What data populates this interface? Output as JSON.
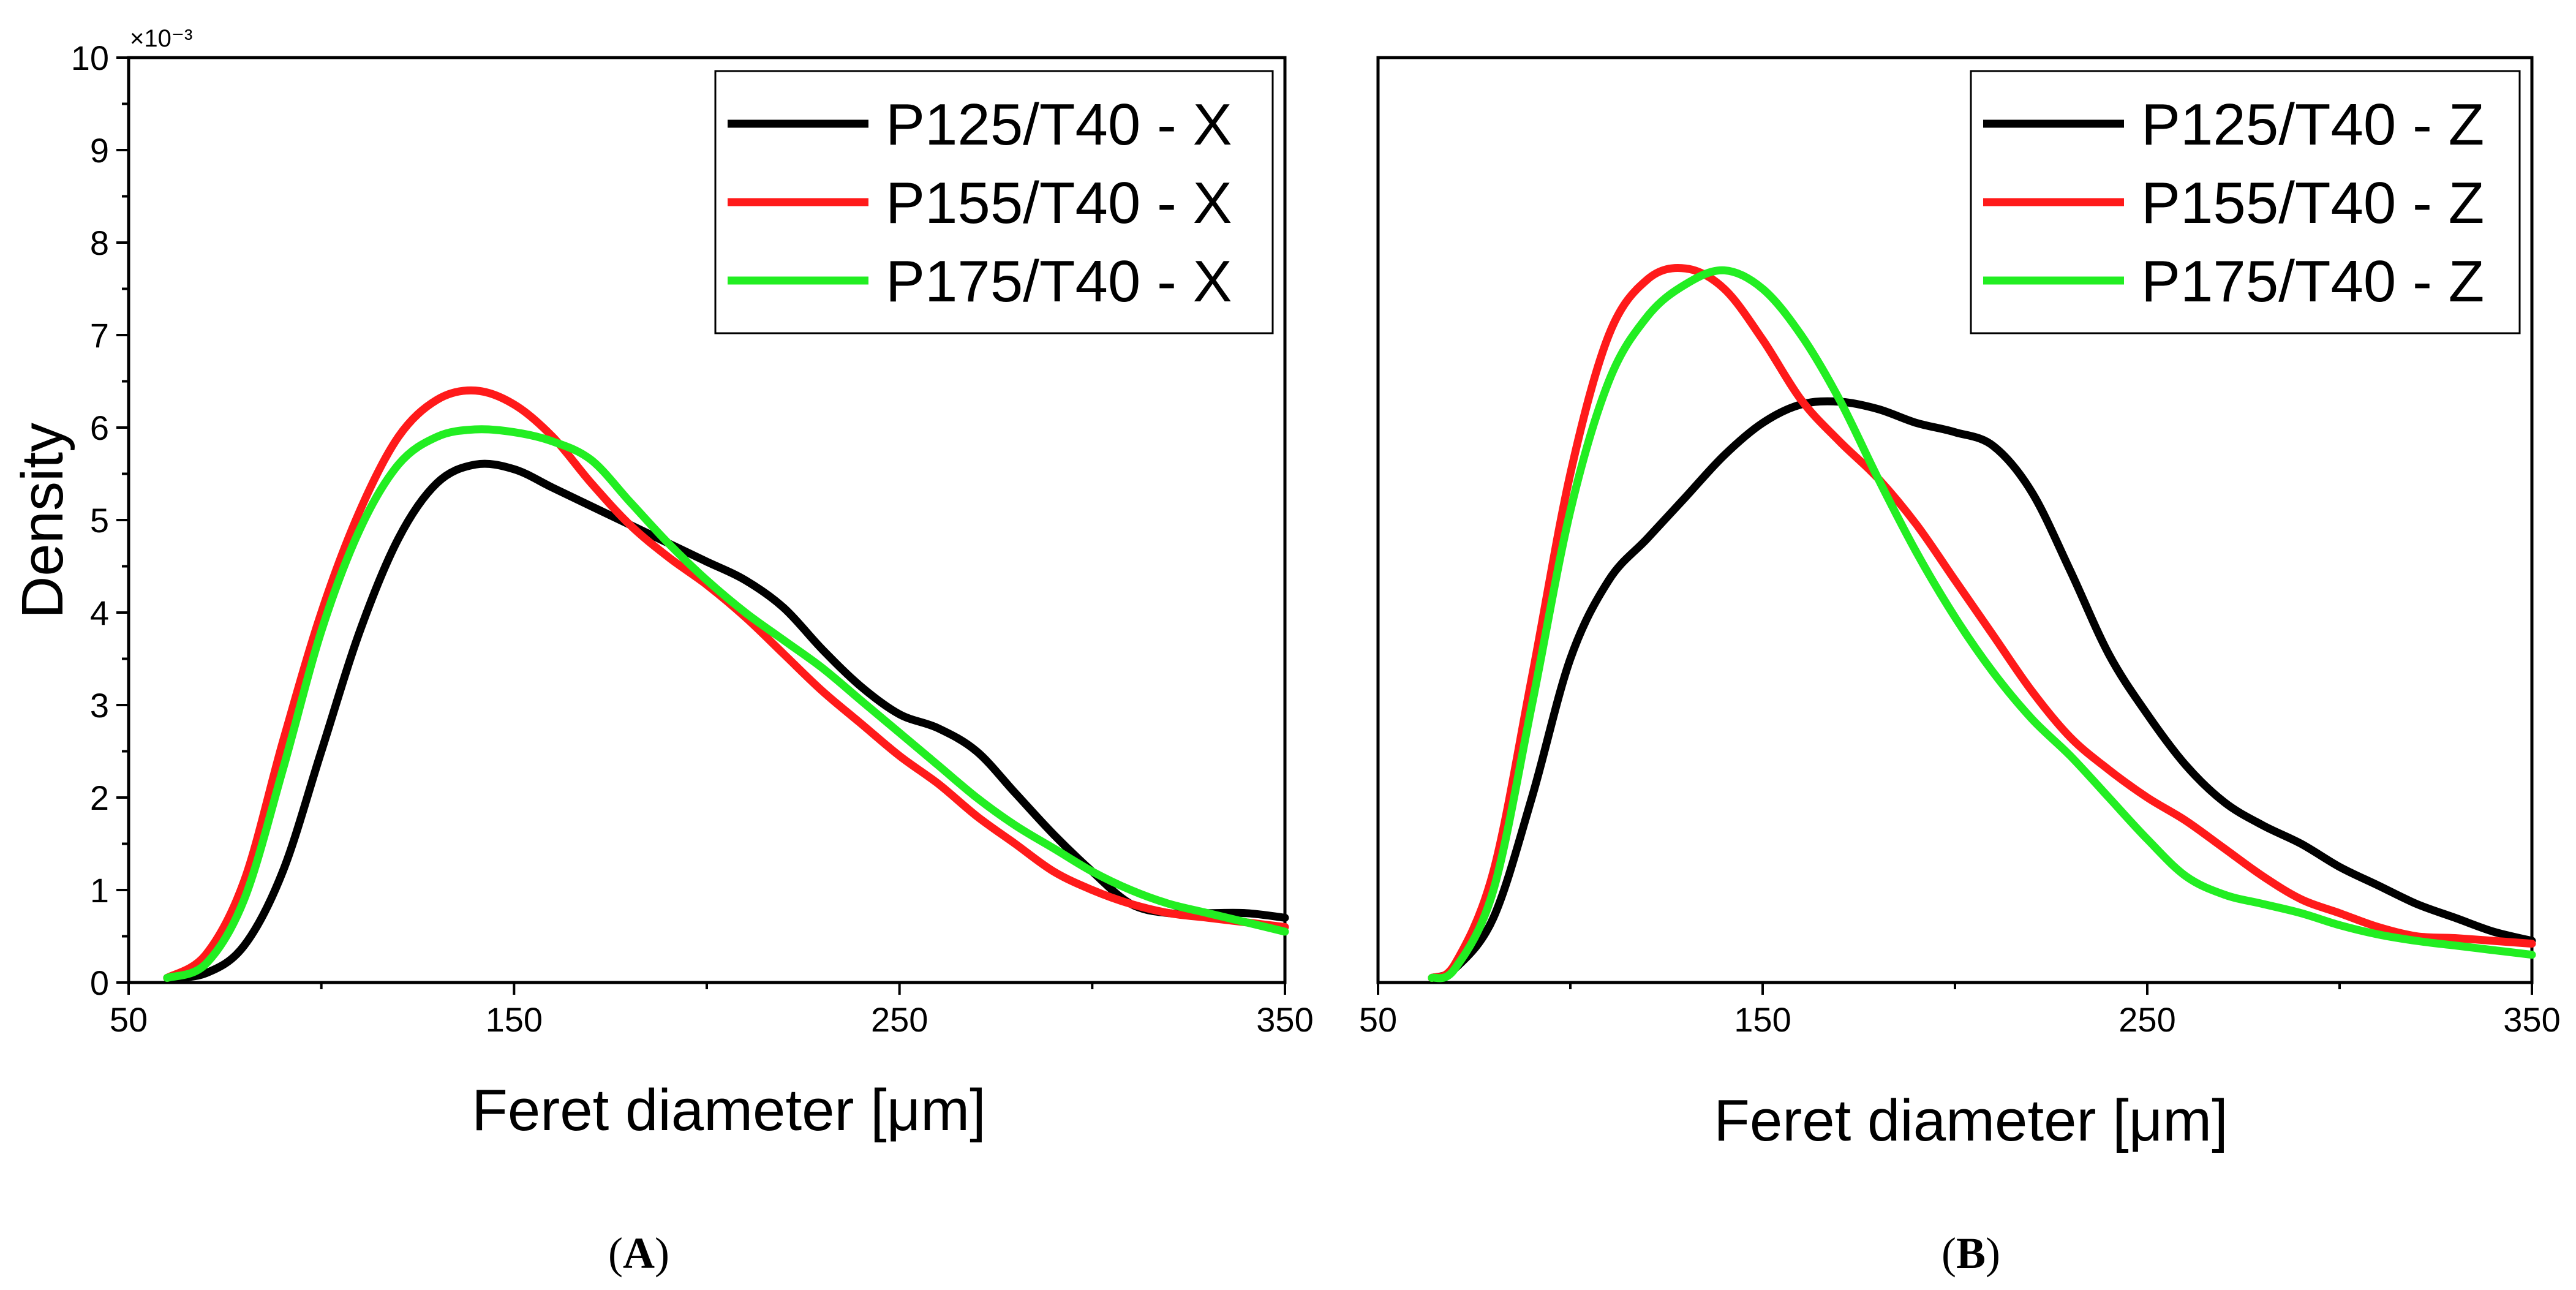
{
  "chart_data": [
    {
      "type": "line",
      "panel_label": "A",
      "xlabel": "Feret diameter [μm]",
      "ylabel": "Density",
      "y_scale_label": "×10⁻³",
      "xlim": [
        50,
        350
      ],
      "ylim": [
        0,
        10
      ],
      "xticks": [
        50,
        150,
        250,
        350
      ],
      "yticks": [
        0,
        1,
        2,
        3,
        4,
        5,
        6,
        7,
        8,
        9,
        10
      ],
      "legend_position": "top-right",
      "series": [
        {
          "name": "P125/T40 - X",
          "color": "#000000",
          "x": [
            60,
            70,
            80,
            90,
            100,
            110,
            120,
            130,
            140,
            150,
            160,
            170,
            180,
            190,
            200,
            210,
            220,
            230,
            240,
            250,
            260,
            270,
            280,
            290,
            300,
            310,
            320,
            330,
            340,
            350
          ],
          "y": [
            0.05,
            0.1,
            0.4,
            1.2,
            2.5,
            3.8,
            4.8,
            5.4,
            5.6,
            5.55,
            5.35,
            5.15,
            4.95,
            4.75,
            4.55,
            4.35,
            4.05,
            3.6,
            3.2,
            2.9,
            2.75,
            2.5,
            2.05,
            1.6,
            1.2,
            0.85,
            0.75,
            0.75,
            0.75,
            0.7
          ]
        },
        {
          "name": "P155/T40 - X",
          "color": "#ff1a1a",
          "x": [
            60,
            70,
            80,
            90,
            100,
            110,
            120,
            130,
            140,
            150,
            160,
            170,
            180,
            190,
            200,
            210,
            220,
            230,
            240,
            250,
            260,
            270,
            280,
            290,
            300,
            310,
            320,
            330,
            340,
            350
          ],
          "y": [
            0.05,
            0.3,
            1.1,
            2.6,
            4.0,
            5.1,
            5.9,
            6.3,
            6.4,
            6.25,
            5.9,
            5.4,
            4.95,
            4.6,
            4.3,
            3.95,
            3.55,
            3.15,
            2.8,
            2.45,
            2.15,
            1.8,
            1.5,
            1.2,
            1.0,
            0.85,
            0.75,
            0.7,
            0.65,
            0.6
          ]
        },
        {
          "name": "P175/T40 - X",
          "color": "#22ee22",
          "x": [
            60,
            70,
            80,
            90,
            100,
            110,
            120,
            130,
            140,
            150,
            160,
            170,
            180,
            190,
            200,
            210,
            220,
            230,
            240,
            250,
            260,
            270,
            280,
            290,
            300,
            310,
            320,
            330,
            340,
            350
          ],
          "y": [
            0.05,
            0.2,
            0.9,
            2.3,
            3.8,
            4.9,
            5.6,
            5.9,
            5.98,
            5.95,
            5.85,
            5.65,
            5.2,
            4.75,
            4.35,
            4.0,
            3.7,
            3.4,
            3.05,
            2.7,
            2.35,
            2.0,
            1.7,
            1.45,
            1.2,
            1.0,
            0.85,
            0.75,
            0.65,
            0.55
          ]
        }
      ]
    },
    {
      "type": "line",
      "panel_label": "B",
      "xlabel": "Feret diameter [μm]",
      "ylabel": "",
      "xlim": [
        50,
        350
      ],
      "ylim": [
        0,
        10
      ],
      "xticks": [
        50,
        150,
        250,
        350
      ],
      "legend_position": "top-right",
      "series": [
        {
          "name": "P125/T40 - Z",
          "color": "#000000",
          "x": [
            64,
            70,
            80,
            90,
            100,
            110,
            120,
            130,
            140,
            150,
            160,
            170,
            180,
            190,
            200,
            210,
            220,
            230,
            240,
            250,
            260,
            270,
            280,
            290,
            300,
            310,
            320,
            330,
            340,
            350
          ],
          "y": [
            0.05,
            0.15,
            0.7,
            2.0,
            3.5,
            4.35,
            4.8,
            5.25,
            5.7,
            6.05,
            6.25,
            6.28,
            6.2,
            6.05,
            5.95,
            5.8,
            5.3,
            4.45,
            3.55,
            2.9,
            2.35,
            1.95,
            1.7,
            1.5,
            1.25,
            1.05,
            0.85,
            0.7,
            0.55,
            0.45
          ]
        },
        {
          "name": "P155/T40 - Z",
          "color": "#ff1a1a",
          "x": [
            64,
            70,
            80,
            90,
            100,
            110,
            120,
            130,
            140,
            150,
            160,
            170,
            180,
            190,
            200,
            210,
            220,
            230,
            240,
            250,
            260,
            270,
            280,
            290,
            300,
            310,
            320,
            330,
            340,
            350
          ],
          "y": [
            0.05,
            0.2,
            1.2,
            3.3,
            5.5,
            7.0,
            7.6,
            7.72,
            7.5,
            6.95,
            6.3,
            5.85,
            5.45,
            4.95,
            4.35,
            3.75,
            3.15,
            2.65,
            2.3,
            2.0,
            1.75,
            1.45,
            1.15,
            0.9,
            0.75,
            0.6,
            0.5,
            0.48,
            0.45,
            0.42
          ]
        },
        {
          "name": "P175/T40 - Z",
          "color": "#22ee22",
          "x": [
            64,
            70,
            80,
            90,
            100,
            110,
            120,
            130,
            140,
            150,
            160,
            170,
            180,
            190,
            200,
            210,
            220,
            230,
            240,
            250,
            260,
            270,
            280,
            290,
            300,
            310,
            320,
            330,
            340,
            350
          ],
          "y": [
            0.05,
            0.15,
            1.0,
            3.0,
            5.1,
            6.5,
            7.2,
            7.55,
            7.7,
            7.5,
            7.0,
            6.3,
            5.45,
            4.65,
            3.95,
            3.35,
            2.85,
            2.45,
            2.0,
            1.55,
            1.15,
            0.95,
            0.85,
            0.75,
            0.62,
            0.52,
            0.45,
            0.4,
            0.35,
            0.3
          ]
        }
      ]
    }
  ]
}
